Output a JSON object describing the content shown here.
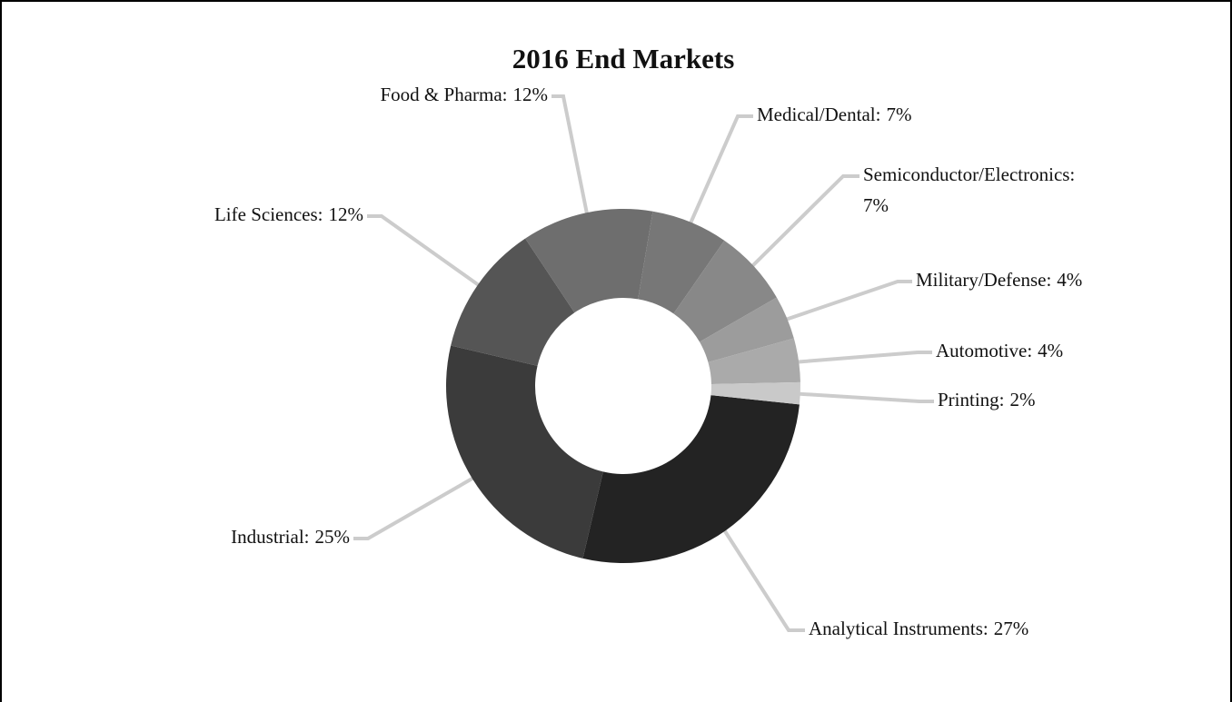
{
  "chart_data": {
    "type": "donut",
    "title": "2016 End Markets",
    "categories": [
      "Analytical Instruments:",
      "Industrial:",
      "Life Sciences:",
      "Food & Pharma:",
      "Medical/Dental:",
      "Semiconductor/Electronics:",
      "Military/Defense:",
      "Automotive:",
      "Printing:"
    ],
    "values": [
      27,
      25,
      12,
      12,
      7,
      7,
      4,
      4,
      2
    ],
    "value_labels": [
      "27%",
      "25%",
      "12%",
      "12%",
      "7%",
      "7%",
      "4%",
      "4%",
      "2%"
    ],
    "colors": [
      "#232323",
      "#3b3b3b",
      "#555555",
      "#6e6e6e",
      "#777777",
      "#888888",
      "#9c9c9c",
      "#aaaaaa",
      "#c9c9c9"
    ]
  }
}
